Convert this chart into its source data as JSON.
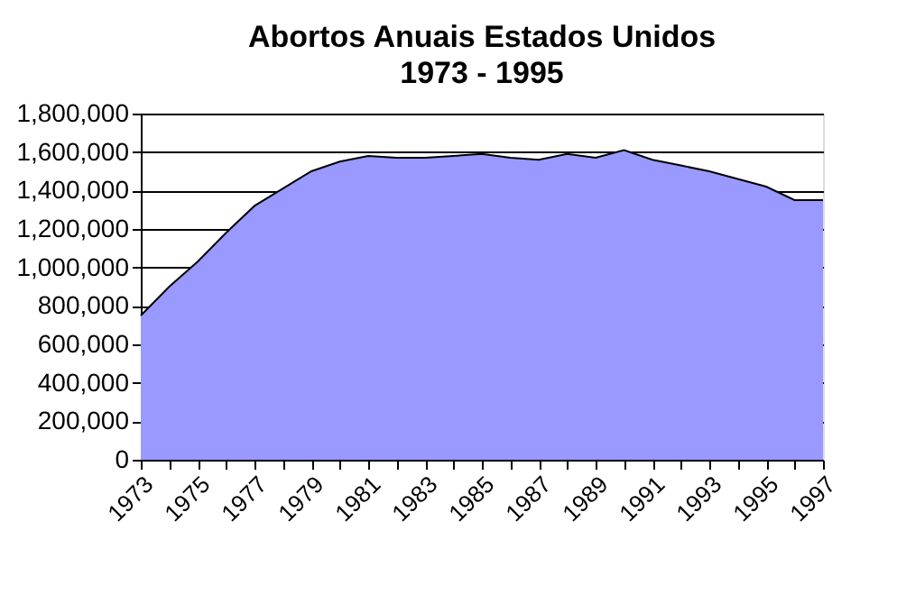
{
  "chart_data": {
    "type": "area",
    "title": "Abortos Anuais Estados Unidos",
    "subtitle": "1973 - 1995",
    "categories": [
      "1973",
      null,
      "1975",
      null,
      "1977",
      null,
      "1979",
      null,
      "1981",
      null,
      "1983",
      null,
      "1985",
      null,
      "1987",
      null,
      "1989",
      null,
      "1991",
      null,
      "1993",
      null,
      "1995",
      null,
      "1997"
    ],
    "series": [
      {
        "color": "#9999ff",
        "values": [
          750000,
          900000,
          1030000,
          1180000,
          1320000,
          1410000,
          1500000,
          1550000,
          1580000,
          1570000,
          1570000,
          1580000,
          1590000,
          1570000,
          1560000,
          1590000,
          1570000,
          1610000,
          1560000,
          1530000,
          1500000,
          1460000,
          1420000,
          1350000,
          1350000
        ]
      }
    ],
    "ylim": [
      0,
      1800000
    ],
    "yticks": [
      0,
      {
        "value": 200000,
        "label": "200,000"
      },
      {
        "value": 400000,
        "label": "400,000"
      },
      {
        "value": 600000,
        "label": "600,000"
      },
      {
        "value": 800000,
        "label": "800,000"
      },
      {
        "value": 1000000,
        "label": "1,000,000"
      },
      {
        "value": 1200000,
        "label": "1,200,000"
      },
      {
        "value": 1400000,
        "label": "1,400,000"
      },
      {
        "value": 1600000,
        "label": "1,600,000"
      },
      {
        "value": 1800000,
        "label": "1,800,000"
      }
    ],
    "grid": "y"
  }
}
